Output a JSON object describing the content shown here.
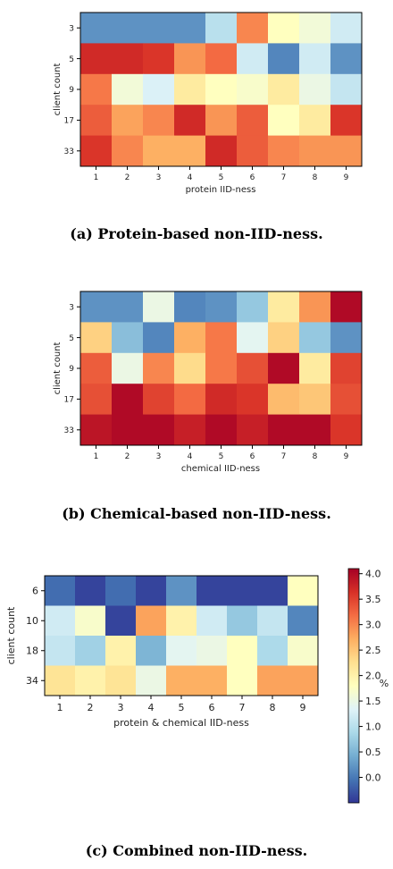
{
  "chart_data": [
    {
      "type": "heatmap",
      "title": "",
      "xlabel": "protein IID-ness",
      "ylabel": "client count",
      "x": [
        "1",
        "2",
        "3",
        "4",
        "5",
        "6",
        "7",
        "8",
        "9"
      ],
      "y": [
        "3",
        "5",
        "9",
        "17",
        "33"
      ],
      "values": [
        [
          0.2,
          0.2,
          0.2,
          0.2,
          1.0,
          3.0,
          1.8,
          1.6,
          1.2
        ],
        [
          3.7,
          3.7,
          3.6,
          2.9,
          3.2,
          1.2,
          0.1,
          1.2,
          0.2
        ],
        [
          3.1,
          1.6,
          1.3,
          2.1,
          1.8,
          1.7,
          2.1,
          1.5,
          1.1
        ],
        [
          3.3,
          2.8,
          3.0,
          3.7,
          2.9,
          3.3,
          1.8,
          2.1,
          3.6
        ],
        [
          3.6,
          3.0,
          2.7,
          2.7,
          3.7,
          3.3,
          3.0,
          2.9,
          2.9
        ]
      ],
      "caption": "(a) Protein-based non-IID-ness."
    },
    {
      "type": "heatmap",
      "title": "",
      "xlabel": "chemical IID-ness",
      "ylabel": "client count",
      "x": [
        "1",
        "2",
        "3",
        "4",
        "5",
        "6",
        "7",
        "8",
        "9"
      ],
      "y": [
        "3",
        "5",
        "9",
        "17",
        "33"
      ],
      "values": [
        [
          0.2,
          0.2,
          1.5,
          0.1,
          0.2,
          0.7,
          2.1,
          2.9,
          4.0
        ],
        [
          2.4,
          0.6,
          0.1,
          2.7,
          3.1,
          1.4,
          2.4,
          0.7,
          0.2
        ],
        [
          3.3,
          1.5,
          3.0,
          2.3,
          3.1,
          3.4,
          4.0,
          2.1,
          3.5
        ],
        [
          3.4,
          4.0,
          3.5,
          3.2,
          3.7,
          3.6,
          2.6,
          2.5,
          3.4
        ],
        [
          3.9,
          4.0,
          4.0,
          3.8,
          4.0,
          3.8,
          4.0,
          4.0,
          3.6
        ]
      ],
      "caption": "(b) Chemical-based non-IID-ness."
    },
    {
      "type": "heatmap",
      "title": "",
      "xlabel": "protein & chemical IID-ness",
      "ylabel": "client count",
      "x": [
        "1",
        "2",
        "3",
        "4",
        "5",
        "6",
        "7",
        "8",
        "9"
      ],
      "y": [
        "6",
        "10",
        "18",
        "34"
      ],
      "values": [
        [
          -0.1,
          -0.4,
          -0.1,
          -0.4,
          0.2,
          -0.4,
          -0.4,
          -0.4,
          1.8
        ],
        [
          1.2,
          1.7,
          -0.4,
          2.8,
          2.0,
          1.2,
          0.7,
          1.1,
          0.1
        ],
        [
          1.1,
          0.8,
          2.0,
          0.5,
          1.4,
          1.5,
          1.8,
          0.9,
          1.7
        ],
        [
          2.2,
          2.0,
          2.2,
          1.5,
          2.7,
          2.7,
          1.8,
          2.8,
          2.8
        ]
      ],
      "colorbar": {
        "ticks": [
          "0.0",
          "0.5",
          "1.0",
          "1.5",
          "2.0",
          "2.5",
          "3.0",
          "3.5",
          "4.0"
        ],
        "label": "%",
        "range": [
          -0.5,
          4.1
        ]
      },
      "caption": "(c) Combined non-IID-ness."
    }
  ]
}
